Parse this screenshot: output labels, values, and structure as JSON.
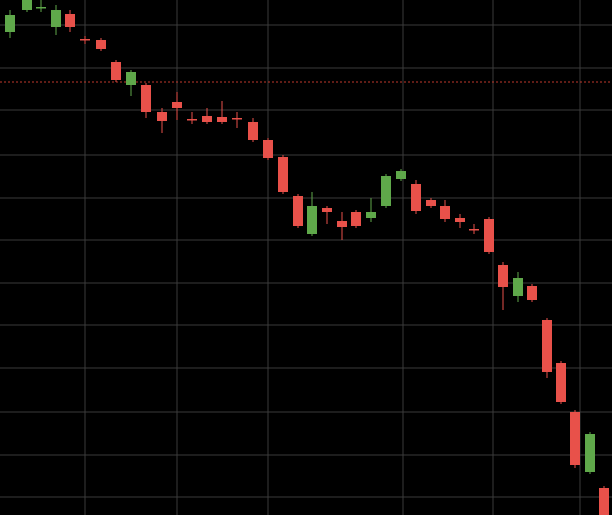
{
  "chart_data": {
    "type": "candlestick",
    "xlim": [
      0,
      612
    ],
    "ylim": [
      0,
      515
    ],
    "xticks": [
      85,
      177,
      268,
      403,
      493,
      580
    ],
    "yticks": [
      18,
      60,
      103,
      147,
      190,
      232,
      275,
      317,
      360,
      405,
      447,
      490
    ],
    "grid": true,
    "up_color": "#5fa84a",
    "down_color": "#e8514a",
    "price_line": 433,
    "price_line_color": "#c0392b",
    "x": [
      10,
      27,
      41,
      56,
      70,
      85,
      101,
      116,
      131,
      146,
      162,
      177,
      192,
      207,
      222,
      237,
      253,
      268,
      283,
      298,
      312,
      327,
      342,
      356,
      371,
      386,
      401,
      416,
      431,
      445,
      460,
      474,
      489,
      503,
      518,
      532,
      547,
      561,
      575,
      590,
      604
    ],
    "open": [
      483,
      505,
      508,
      488,
      501,
      476,
      475,
      453,
      430,
      430,
      403,
      413,
      396,
      399,
      398,
      397,
      393,
      375,
      358,
      319,
      281,
      307,
      294,
      303,
      297,
      309,
      336,
      331,
      315,
      309,
      297,
      286,
      296,
      250,
      219,
      229,
      195,
      152,
      103,
      43,
      27
    ],
    "high": [
      505,
      515,
      515,
      510,
      505,
      479,
      477,
      455,
      445,
      432,
      407,
      423,
      403,
      407,
      414,
      403,
      397,
      377,
      360,
      321,
      323,
      309,
      303,
      305,
      317,
      341,
      346,
      335,
      317,
      315,
      301,
      291,
      298,
      253,
      243,
      231,
      197,
      154,
      105,
      83,
      29
    ],
    "low": [
      477,
      503,
      503,
      480,
      483,
      471,
      464,
      433,
      419,
      397,
      382,
      395,
      391,
      391,
      391,
      387,
      373,
      355,
      321,
      287,
      279,
      291,
      275,
      287,
      293,
      307,
      334,
      301,
      307,
      293,
      287,
      281,
      261,
      205,
      213,
      213,
      137,
      111,
      47,
      41,
      0
    ],
    "close": [
      500,
      515,
      508,
      505,
      488,
      475,
      466,
      435,
      443,
      403,
      394,
      407,
      395,
      393,
      393,
      396,
      375,
      357,
      323,
      289,
      309,
      303,
      288,
      289,
      303,
      339,
      344,
      304,
      309,
      296,
      293,
      285,
      263,
      228,
      237,
      215,
      143,
      113,
      50,
      81,
      0
    ]
  }
}
